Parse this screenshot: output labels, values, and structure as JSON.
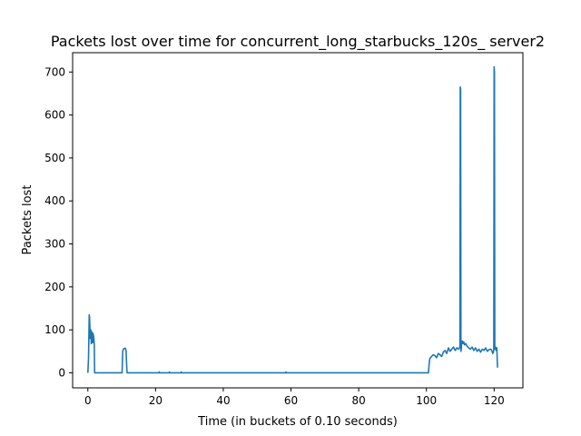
{
  "chart_data": {
    "type": "line",
    "title": "Packets lost over time for concurrent_long_starbucks_120s_ server2",
    "xlabel": "Time (in buckets of 0.10 seconds)",
    "ylabel": "Packets lost",
    "xlim": [
      -4.5,
      128.5
    ],
    "ylim": [
      -35,
      745
    ],
    "xticks": [
      0,
      20,
      40,
      60,
      80,
      100,
      120
    ],
    "yticks": [
      0,
      100,
      200,
      300,
      400,
      500,
      600,
      700
    ],
    "grid": false,
    "line_color": "#1f77b4",
    "series": [
      {
        "x": [
          0,
          0.2,
          0.4,
          0.5,
          0.7,
          0.9,
          1.0,
          1.2,
          1.4,
          1.5,
          1.7,
          1.9,
          2.0,
          2.1,
          5,
          9,
          10.1,
          10.3,
          10.5,
          10.8,
          11.1,
          11.3,
          11.5,
          11.6,
          11.8,
          14,
          21,
          21.1,
          21.2,
          24,
          24.1,
          24.2,
          27.5,
          27.6,
          27.7,
          40,
          58.4,
          58.5,
          58.6,
          70,
          85,
          100.6,
          100.8,
          101.0,
          101.5,
          102.0,
          102.5,
          103.0,
          103.5,
          104.0,
          104.5,
          105.0,
          105.5,
          106.0,
          106.5,
          107.0,
          107.5,
          108.0,
          108.5,
          109.0,
          109.5,
          109.9,
          110.0,
          110.1,
          110.2,
          110.3,
          110.4,
          110.6,
          110.8,
          111.0,
          111.3,
          111.6,
          112.0,
          112.5,
          113.0,
          113.5,
          114.0,
          114.5,
          115.0,
          115.5,
          116.0,
          116.5,
          117.0,
          117.5,
          118.0,
          118.5,
          119.0,
          119.3,
          119.6,
          119.8,
          119.9,
          120.0,
          120.1,
          120.2,
          120.4,
          120.6,
          120.8,
          121.0
        ],
        "y": [
          0,
          35,
          135,
          130,
          80,
          100,
          68,
          95,
          70,
          92,
          85,
          65,
          0,
          0,
          0,
          0,
          0,
          50,
          55,
          57,
          57,
          50,
          10,
          0,
          0,
          0,
          0,
          2,
          0,
          0,
          2,
          0,
          0,
          2,
          0,
          0,
          0,
          2,
          0,
          0,
          0,
          0,
          20,
          33,
          38,
          42,
          40,
          35,
          45,
          42,
          38,
          48,
          52,
          45,
          58,
          50,
          55,
          60,
          52,
          58,
          55,
          60,
          665,
          660,
          50,
          55,
          70,
          74,
          68,
          72,
          65,
          68,
          62,
          58,
          55,
          60,
          52,
          58,
          50,
          55,
          48,
          55,
          52,
          58,
          50,
          54,
          55,
          52,
          45,
          48,
          55,
          712,
          700,
          55,
          60,
          52,
          58,
          12
        ]
      }
    ]
  }
}
